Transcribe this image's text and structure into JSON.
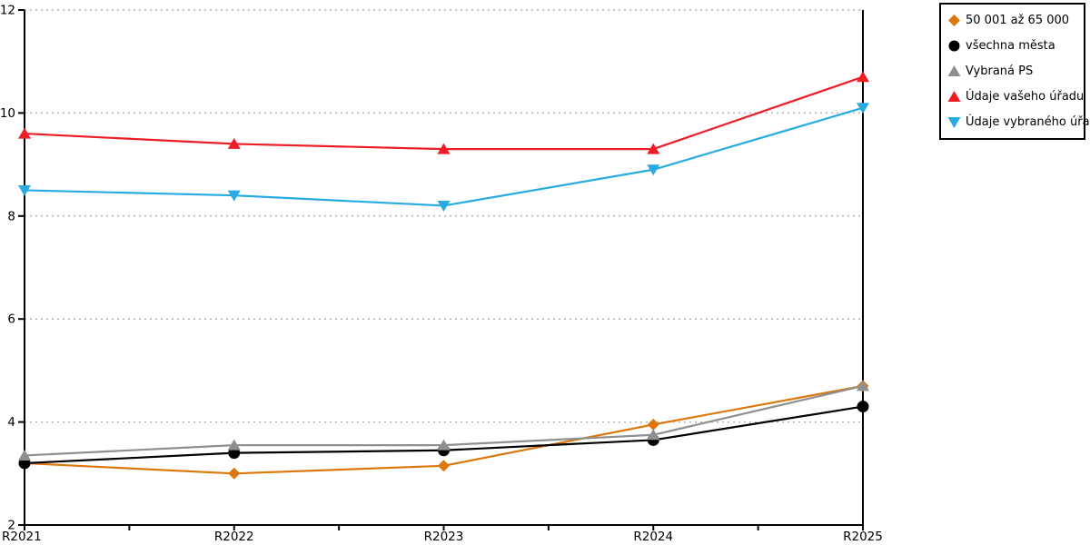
{
  "chart_data": {
    "type": "line",
    "title": "",
    "xlabel": "",
    "ylabel": "",
    "categories": [
      "R2021",
      "R2022",
      "R2023",
      "R2024",
      "R2025"
    ],
    "series": [
      {
        "name": "50 001 až 65 000",
        "marker": "diamond",
        "color": "#de760e",
        "values": [
          3.2,
          3.0,
          3.15,
          3.95,
          4.7
        ]
      },
      {
        "name": "všechna města",
        "marker": "circle",
        "color": "#000000",
        "values": [
          3.2,
          3.4,
          3.45,
          3.65,
          4.3
        ]
      },
      {
        "name": "Vybraná PS",
        "marker": "triangle-up",
        "color": "#8f8f8f",
        "values": [
          3.35,
          3.55,
          3.55,
          3.75,
          4.7
        ]
      },
      {
        "name": "Údaje vašeho úřadu",
        "marker": "triangle-up",
        "color": "#ee1c25",
        "values": [
          9.6,
          9.4,
          9.3,
          9.3,
          10.7
        ]
      },
      {
        "name": "Údaje vybraného úřadu",
        "marker": "triangle-down",
        "color": "#29abe2",
        "values": [
          8.5,
          8.4,
          8.2,
          8.9,
          10.1
        ]
      }
    ],
    "ylim": [
      2,
      12
    ],
    "yticks": [
      2,
      4,
      6,
      8,
      10,
      12
    ],
    "ytick_labels": [
      "2",
      "4",
      "6",
      "8",
      "10",
      "12"
    ],
    "grid": "horizontal dotted",
    "grid_color": "#b3b3b3",
    "axis_color": "#000000",
    "legend_position": "top-right"
  }
}
